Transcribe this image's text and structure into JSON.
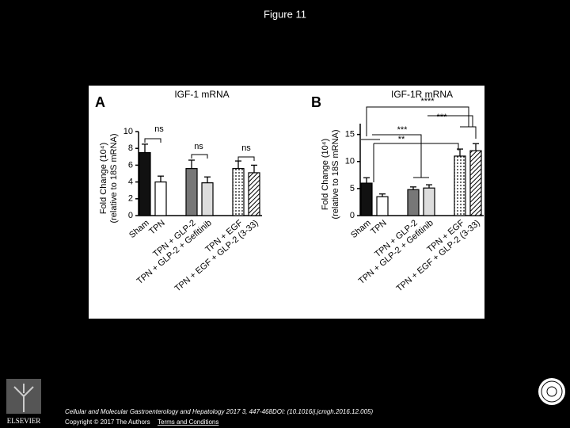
{
  "slide_title": "Figure 11",
  "chart_data": [
    {
      "type": "bar",
      "panel_label": "A",
      "title": "IGF-1 mRNA",
      "y_label": [
        "Fold Change (10⁴)",
        "(relative to 18S mRNA)"
      ],
      "categories": [
        "Sham",
        "TPN",
        "TPN + GLP-2",
        "TPN + GLP-2 + Gefitinib",
        "TPN + EGF",
        "TPN + EGF + GLP-2 (3-33)"
      ],
      "values": [
        7.5,
        4.0,
        5.6,
        3.9,
        5.6,
        5.1
      ],
      "errors": [
        1.0,
        0.7,
        1.0,
        0.7,
        0.9,
        0.9
      ],
      "fills": [
        "#111111",
        "#ffffff",
        "#777777",
        "#dddddd",
        "dots",
        "hatch"
      ],
      "ylim": [
        0,
        10
      ],
      "yticks": [
        0,
        2,
        4,
        6,
        8,
        10
      ],
      "annotations": [
        "ns",
        "ns",
        "ns"
      ]
    },
    {
      "type": "bar",
      "panel_label": "B",
      "title": "IGF-1R mRNA",
      "y_label": [
        "Fold Change (10⁴)",
        "(relative to 18S mRNA)"
      ],
      "categories": [
        "Sham",
        "TPN",
        "TPN + GLP-2",
        "TPN + GLP-2 + Gefitinib",
        "TPN + EGF",
        "TPN + EGF + GLP-2 (3-33)"
      ],
      "values": [
        6.0,
        3.5,
        4.8,
        5.1,
        11.0,
        12.0
      ],
      "errors": [
        1.0,
        0.5,
        0.5,
        0.6,
        1.3,
        1.3
      ],
      "fills": [
        "#111111",
        "#ffffff",
        "#777777",
        "#dddddd",
        "dots",
        "hatch"
      ],
      "ylim": [
        0,
        17
      ],
      "yticks": [
        0,
        5,
        10,
        15
      ],
      "annotations": [
        "****",
        "***",
        "***",
        "**"
      ]
    }
  ],
  "footer": {
    "logo": "ELSEVIER",
    "citation": "Cellular and Molecular Gastroenterology and Hepatology 2017 3, 447-468DOI: (10.1016/j.jcmgh.2016.12.005)",
    "copyright": "Copyright © 2017 The Authors",
    "link": "Terms and Conditions"
  }
}
